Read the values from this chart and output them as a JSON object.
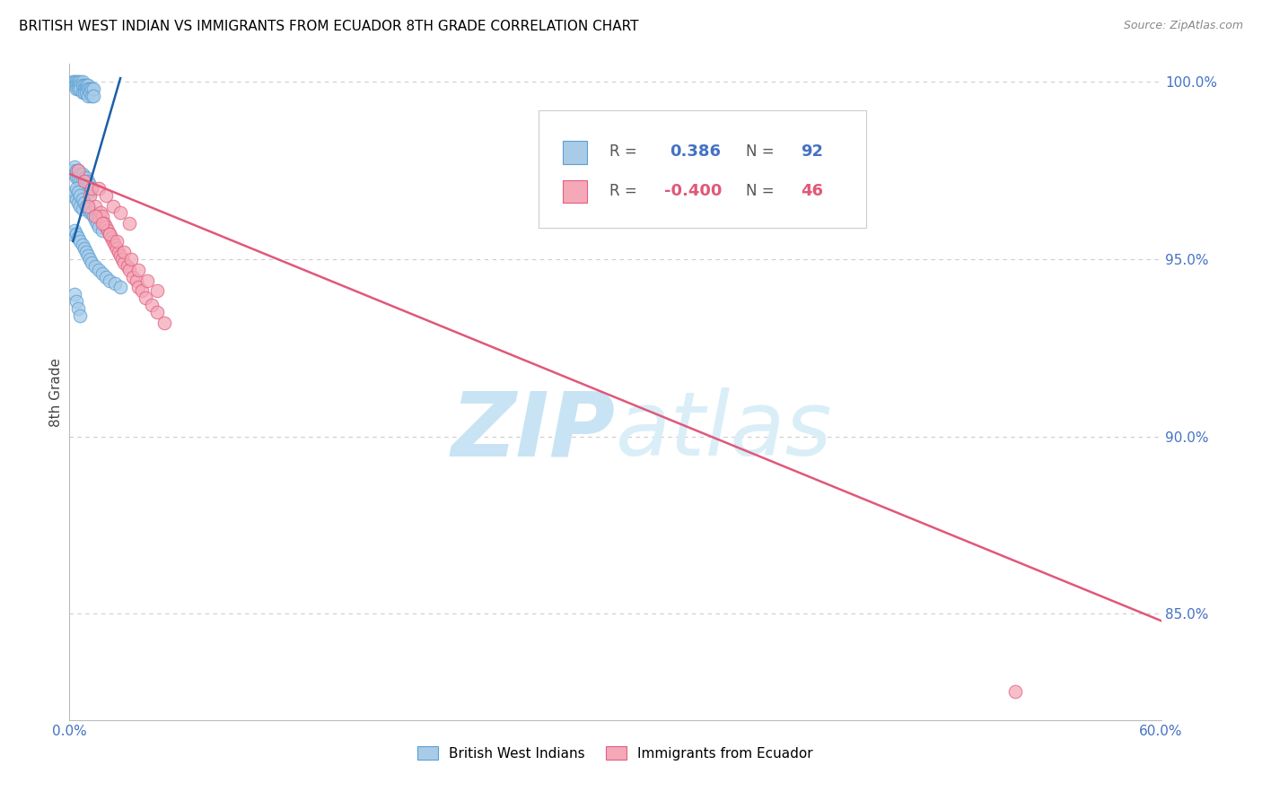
{
  "title": "BRITISH WEST INDIAN VS IMMIGRANTS FROM ECUADOR 8TH GRADE CORRELATION CHART",
  "source": "Source: ZipAtlas.com",
  "ylabel": "8th Grade",
  "xlim": [
    0.0,
    0.6
  ],
  "ylim": [
    0.82,
    1.005
  ],
  "xticks": [
    0.0,
    0.1,
    0.2,
    0.3,
    0.4,
    0.5,
    0.6
  ],
  "xticklabels": [
    "0.0%",
    "",
    "",
    "",
    "",
    "",
    "60.0%"
  ],
  "yticks_right": [
    0.85,
    0.9,
    0.95,
    1.0
  ],
  "yticklabels_right": [
    "85.0%",
    "90.0%",
    "95.0%",
    "100.0%"
  ],
  "blue_R": "0.386",
  "blue_N": "92",
  "pink_R": "-0.400",
  "pink_N": "46",
  "blue_color": "#a8cce8",
  "blue_edge": "#5a9fd4",
  "pink_color": "#f4a8b8",
  "pink_edge": "#e06080",
  "blue_line_color": "#1a5fa8",
  "pink_line_color": "#e05878",
  "watermark_color": "#daeef8",
  "legend_label_blue": "British West Indians",
  "legend_label_pink": "Immigrants from Ecuador",
  "background_color": "#ffffff",
  "grid_color": "#cccccc",
  "blue_scatter_x": [
    0.002,
    0.003,
    0.003,
    0.004,
    0.004,
    0.004,
    0.005,
    0.005,
    0.005,
    0.006,
    0.006,
    0.006,
    0.007,
    0.007,
    0.007,
    0.008,
    0.008,
    0.008,
    0.009,
    0.009,
    0.009,
    0.01,
    0.01,
    0.01,
    0.011,
    0.011,
    0.012,
    0.012,
    0.013,
    0.013,
    0.002,
    0.003,
    0.003,
    0.004,
    0.004,
    0.005,
    0.005,
    0.006,
    0.006,
    0.007,
    0.007,
    0.008,
    0.008,
    0.009,
    0.009,
    0.01,
    0.01,
    0.011,
    0.011,
    0.012,
    0.002,
    0.003,
    0.004,
    0.004,
    0.005,
    0.005,
    0.006,
    0.006,
    0.007,
    0.007,
    0.008,
    0.009,
    0.01,
    0.011,
    0.012,
    0.013,
    0.014,
    0.015,
    0.016,
    0.018,
    0.002,
    0.003,
    0.004,
    0.005,
    0.006,
    0.007,
    0.008,
    0.009,
    0.01,
    0.011,
    0.012,
    0.014,
    0.016,
    0.018,
    0.02,
    0.022,
    0.025,
    0.028,
    0.003,
    0.004,
    0.005,
    0.006
  ],
  "blue_scatter_y": [
    1.0,
    1.0,
    0.999,
    1.0,
    0.999,
    0.998,
    1.0,
    0.999,
    0.998,
    1.0,
    0.999,
    0.998,
    1.0,
    0.999,
    0.997,
    0.999,
    0.998,
    0.997,
    0.999,
    0.998,
    0.997,
    0.999,
    0.998,
    0.996,
    0.998,
    0.997,
    0.998,
    0.996,
    0.998,
    0.996,
    0.975,
    0.976,
    0.974,
    0.975,
    0.973,
    0.975,
    0.973,
    0.974,
    0.972,
    0.974,
    0.972,
    0.973,
    0.971,
    0.973,
    0.971,
    0.972,
    0.97,
    0.971,
    0.969,
    0.97,
    0.968,
    0.969,
    0.97,
    0.967,
    0.969,
    0.966,
    0.968,
    0.965,
    0.967,
    0.964,
    0.966,
    0.965,
    0.964,
    0.963,
    0.963,
    0.962,
    0.961,
    0.96,
    0.959,
    0.958,
    0.957,
    0.958,
    0.957,
    0.956,
    0.955,
    0.954,
    0.953,
    0.952,
    0.951,
    0.95,
    0.949,
    0.948,
    0.947,
    0.946,
    0.945,
    0.944,
    0.943,
    0.942,
    0.94,
    0.938,
    0.936,
    0.934
  ],
  "pink_scatter_x": [
    0.005,
    0.008,
    0.011,
    0.012,
    0.014,
    0.016,
    0.017,
    0.018,
    0.019,
    0.02,
    0.021,
    0.022,
    0.023,
    0.024,
    0.025,
    0.026,
    0.027,
    0.028,
    0.029,
    0.03,
    0.032,
    0.033,
    0.035,
    0.037,
    0.038,
    0.04,
    0.042,
    0.045,
    0.048,
    0.052,
    0.01,
    0.014,
    0.018,
    0.022,
    0.026,
    0.03,
    0.034,
    0.038,
    0.043,
    0.048,
    0.016,
    0.02,
    0.024,
    0.028,
    0.033,
    0.52
  ],
  "pink_scatter_y": [
    0.975,
    0.972,
    0.968,
    0.97,
    0.965,
    0.962,
    0.963,
    0.962,
    0.96,
    0.959,
    0.958,
    0.957,
    0.956,
    0.955,
    0.954,
    0.953,
    0.952,
    0.951,
    0.95,
    0.949,
    0.948,
    0.947,
    0.945,
    0.944,
    0.942,
    0.941,
    0.939,
    0.937,
    0.935,
    0.932,
    0.965,
    0.962,
    0.96,
    0.957,
    0.955,
    0.952,
    0.95,
    0.947,
    0.944,
    0.941,
    0.97,
    0.968,
    0.965,
    0.963,
    0.96,
    0.828
  ],
  "blue_trend_x": [
    0.002,
    0.028
  ],
  "blue_trend_y": [
    0.955,
    1.001
  ],
  "pink_trend_x": [
    0.0,
    0.6
  ],
  "pink_trend_y": [
    0.974,
    0.848
  ]
}
